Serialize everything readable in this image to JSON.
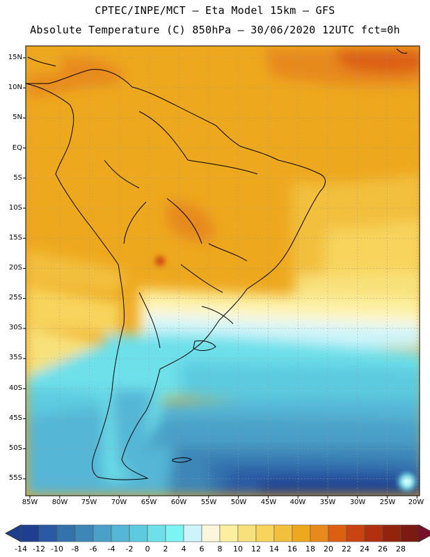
{
  "title": {
    "line1": "CPTEC/INPE/MCT —  Eta Model 15km — GFS",
    "line2": "Absolute Temperature (C) 850hPa — 30/06/2020 12UTC fct=0h"
  },
  "axes": {
    "latitude_labels": [
      "15N",
      "10N",
      "5N",
      "EQ",
      "5S",
      "10S",
      "15S",
      "20S",
      "25S",
      "30S",
      "35S",
      "40S",
      "45S",
      "50S",
      "55S"
    ],
    "longitude_labels": [
      "85W",
      "80W",
      "75W",
      "70W",
      "65W",
      "60W",
      "55W",
      "50W",
      "45W",
      "40W",
      "35W",
      "30W",
      "25W",
      "20W"
    ]
  },
  "colorbar": {
    "labels": [
      "-14",
      "-12",
      "-10",
      "-8",
      "-6",
      "-4",
      "-2",
      "0",
      "2",
      "4",
      "6",
      "8",
      "10",
      "12",
      "14",
      "16",
      "18",
      "20",
      "22",
      "24",
      "26",
      "28"
    ],
    "colors": [
      "#1e3f8f",
      "#2a5aa4",
      "#3372ad",
      "#3d87b8",
      "#4aa0c8",
      "#55b6d6",
      "#5ccbe0",
      "#6de0ea",
      "#7df4f4",
      "#cdf4fa",
      "#fcf7dc",
      "#fcf0a0",
      "#f8e17a",
      "#f8d45c",
      "#f2c03c",
      "#eea81e",
      "#e7891c",
      "#dc5f12",
      "#c94410",
      "#b03010",
      "#94230e",
      "#7a1a10"
    ]
  }
}
